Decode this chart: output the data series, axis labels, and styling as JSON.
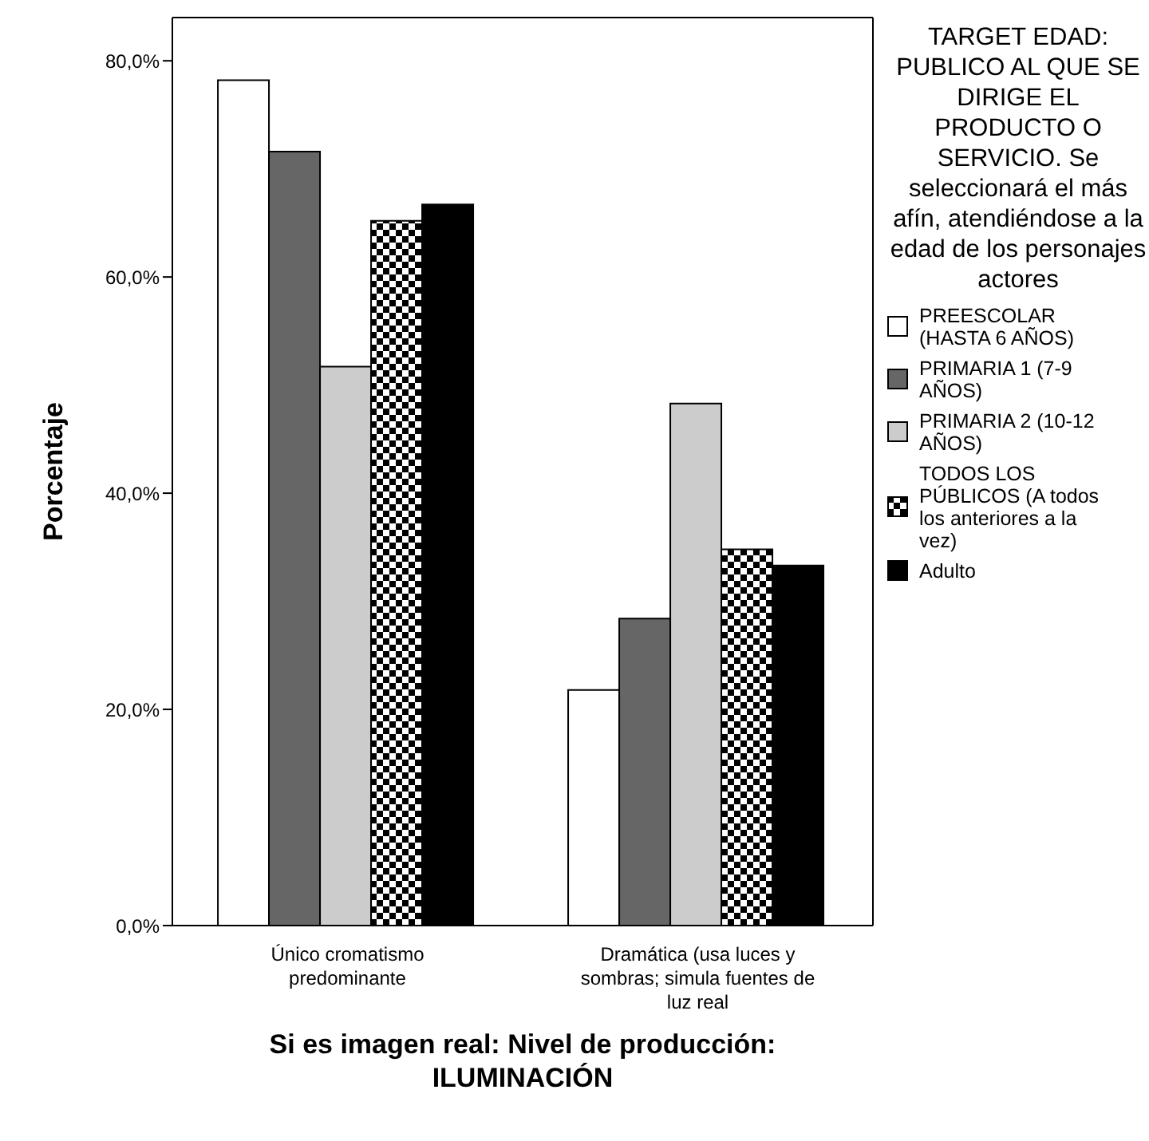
{
  "chart_data": {
    "type": "bar",
    "xlabel": "Si es imagen real: Nivel de producción: ILUMINACIÓN",
    "ylabel": "Porcentaje",
    "legend_title": "TARGET EDAD: PUBLICO AL QUE SE DIRIGE EL PRODUCTO O SERVICIO. Se seleccionará el más afín, atendiéndose a la edad de los personajes actores",
    "categories": [
      "Único cromatismo predominante",
      "Dramática (usa luces y sombras; simula fuentes de luz real"
    ],
    "series": [
      {
        "name": "PREESCOLAR  (HASTA  6 AÑOS)",
        "color": "#ffffff",
        "values": [
          78.2,
          21.8
        ]
      },
      {
        "name": "PRIMARIA 1 (7-9 AÑOS)",
        "color": "#666666",
        "values": [
          71.6,
          28.4
        ]
      },
      {
        "name": "PRIMARIA 2 (10-12 AÑOS)",
        "color": "#cccccc",
        "values": [
          51.7,
          48.3
        ]
      },
      {
        "name": "TODOS LOS PÚBLICOS (A todos los anteriores a la vez)",
        "color": "#000000",
        "values": [
          65.2,
          34.8
        ]
      },
      {
        "name": "Adulto",
        "color": "#000000",
        "values": [
          66.7,
          33.3
        ]
      }
    ],
    "ylim": [
      0,
      84
    ],
    "yticks": [
      {
        "value": 0,
        "label": "0,0%"
      },
      {
        "value": 20,
        "label": "20,0%"
      },
      {
        "value": 40,
        "label": "40,0%"
      },
      {
        "value": 60,
        "label": "60,0%"
      },
      {
        "value": 80,
        "label": "80,0%"
      }
    ],
    "grid": false,
    "legend": "right"
  }
}
